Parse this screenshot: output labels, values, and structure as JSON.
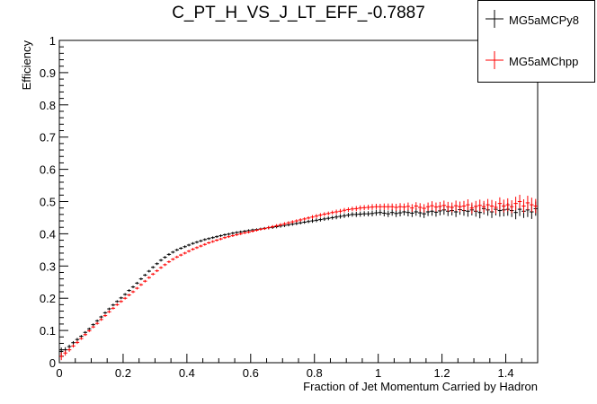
{
  "chart_data": {
    "type": "scatter",
    "title": "C_PT_H_VS_J_LT_EFF_-0.7887",
    "xlabel": "Fraction of Jet Momentum Carried by Hadron",
    "ylabel": "Efficiency",
    "xlim": [
      0,
      1.5
    ],
    "ylim": [
      0,
      1
    ],
    "x_ticks": [
      0,
      0.2,
      0.4,
      0.6,
      0.8,
      1,
      1.2,
      1.4
    ],
    "x_tick_labels": [
      "0",
      "0.2",
      "0.4",
      "0.6",
      "0.8",
      "1",
      "1.2",
      "1.4"
    ],
    "y_ticks": [
      0,
      0.1,
      0.2,
      0.3,
      0.4,
      0.5,
      0.6,
      0.7,
      0.8,
      0.9,
      1
    ],
    "y_tick_labels": [
      "0",
      "0.1",
      "0.2",
      "0.3",
      "0.4",
      "0.5",
      "0.6",
      "0.7",
      "0.8",
      "0.9",
      "1"
    ],
    "grid": false,
    "legend_position": "top-right",
    "bin_width": 0.0125,
    "series": [
      {
        "name": "MG5aMCPy8",
        "color": "#000000",
        "x": [
          0.00625,
          0.01875,
          0.03125,
          0.04375,
          0.05625,
          0.06875,
          0.08125,
          0.09375,
          0.10625,
          0.11875,
          0.13125,
          0.14375,
          0.15625,
          0.16875,
          0.18125,
          0.19375,
          0.20625,
          0.21875,
          0.23125,
          0.24375,
          0.25625,
          0.26875,
          0.28125,
          0.29375,
          0.30625,
          0.31875,
          0.33125,
          0.34375,
          0.35625,
          0.36875,
          0.38125,
          0.39375,
          0.40625,
          0.41875,
          0.43125,
          0.44375,
          0.45625,
          0.46875,
          0.48125,
          0.49375,
          0.50625,
          0.51875,
          0.53125,
          0.54375,
          0.55625,
          0.56875,
          0.58125,
          0.59375,
          0.60625,
          0.61875,
          0.63125,
          0.64375,
          0.65625,
          0.66875,
          0.68125,
          0.69375,
          0.70625,
          0.71875,
          0.73125,
          0.74375,
          0.75625,
          0.76875,
          0.78125,
          0.79375,
          0.80625,
          0.81875,
          0.83125,
          0.84375,
          0.85625,
          0.86875,
          0.88125,
          0.89375,
          0.90625,
          0.91875,
          0.93125,
          0.94375,
          0.95625,
          0.96875,
          0.98125,
          0.99375,
          1.00625,
          1.01875,
          1.03125,
          1.04375,
          1.05625,
          1.06875,
          1.08125,
          1.09375,
          1.10625,
          1.11875,
          1.13125,
          1.14375,
          1.15625,
          1.16875,
          1.18125,
          1.19375,
          1.20625,
          1.21875,
          1.23125,
          1.24375,
          1.25625,
          1.26875,
          1.28125,
          1.29375,
          1.30625,
          1.31875,
          1.33125,
          1.34375,
          1.35625,
          1.36875,
          1.38125,
          1.39375,
          1.40625,
          1.41875,
          1.43125,
          1.44375,
          1.45625,
          1.46875,
          1.48125,
          1.49375
        ],
        "y": [
          0.035,
          0.04,
          0.05,
          0.062,
          0.072,
          0.082,
          0.094,
          0.105,
          0.118,
          0.13,
          0.142,
          0.155,
          0.167,
          0.179,
          0.19,
          0.201,
          0.212,
          0.224,
          0.235,
          0.247,
          0.26,
          0.272,
          0.284,
          0.296,
          0.307,
          0.318,
          0.327,
          0.336,
          0.343,
          0.35,
          0.355,
          0.36,
          0.365,
          0.37,
          0.374,
          0.378,
          0.382,
          0.385,
          0.388,
          0.391,
          0.394,
          0.397,
          0.399,
          0.402,
          0.404,
          0.406,
          0.408,
          0.41,
          0.412,
          0.413,
          0.415,
          0.417,
          0.419,
          0.42,
          0.422,
          0.424,
          0.426,
          0.428,
          0.43,
          0.432,
          0.434,
          0.436,
          0.438,
          0.44,
          0.442,
          0.444,
          0.446,
          0.448,
          0.45,
          0.452,
          0.454,
          0.456,
          0.458,
          0.46,
          0.46,
          0.461,
          0.462,
          0.462,
          0.463,
          0.465,
          0.466,
          0.464,
          0.462,
          0.466,
          0.463,
          0.465,
          0.468,
          0.466,
          0.464,
          0.468,
          0.465,
          0.462,
          0.468,
          0.47,
          0.467,
          0.471,
          0.474,
          0.47,
          0.472,
          0.468,
          0.475,
          0.472,
          0.47,
          0.474,
          0.47,
          0.466,
          0.478,
          0.474,
          0.468,
          0.476,
          0.472,
          0.474,
          0.476,
          0.472,
          0.466,
          0.476,
          0.47,
          0.474,
          0.468,
          0.478
        ],
        "yerr": [
          0.012,
          0.008,
          0.006,
          0.005,
          0.005,
          0.004,
          0.004,
          0.004,
          0.004,
          0.004,
          0.004,
          0.004,
          0.004,
          0.004,
          0.004,
          0.004,
          0.004,
          0.004,
          0.004,
          0.004,
          0.004,
          0.004,
          0.004,
          0.004,
          0.004,
          0.004,
          0.004,
          0.004,
          0.004,
          0.004,
          0.004,
          0.004,
          0.004,
          0.004,
          0.004,
          0.004,
          0.004,
          0.004,
          0.004,
          0.004,
          0.004,
          0.004,
          0.004,
          0.004,
          0.004,
          0.004,
          0.004,
          0.004,
          0.004,
          0.004,
          0.004,
          0.004,
          0.005,
          0.005,
          0.005,
          0.005,
          0.005,
          0.005,
          0.005,
          0.005,
          0.005,
          0.005,
          0.005,
          0.006,
          0.006,
          0.006,
          0.006,
          0.006,
          0.006,
          0.007,
          0.007,
          0.007,
          0.007,
          0.007,
          0.008,
          0.008,
          0.008,
          0.008,
          0.009,
          0.009,
          0.009,
          0.01,
          0.01,
          0.01,
          0.011,
          0.011,
          0.011,
          0.012,
          0.012,
          0.012,
          0.013,
          0.013,
          0.013,
          0.014,
          0.014,
          0.014,
          0.015,
          0.015,
          0.015,
          0.016,
          0.016,
          0.016,
          0.017,
          0.017,
          0.017,
          0.018,
          0.018,
          0.018,
          0.019,
          0.019,
          0.019,
          0.02,
          0.02,
          0.02,
          0.021,
          0.021,
          0.021,
          0.022,
          0.022,
          0.022
        ]
      },
      {
        "name": "MG5aMChpp",
        "color": "#ff0000",
        "x": [
          0.00625,
          0.01875,
          0.03125,
          0.04375,
          0.05625,
          0.06875,
          0.08125,
          0.09375,
          0.10625,
          0.11875,
          0.13125,
          0.14375,
          0.15625,
          0.16875,
          0.18125,
          0.19375,
          0.20625,
          0.21875,
          0.23125,
          0.24375,
          0.25625,
          0.26875,
          0.28125,
          0.29375,
          0.30625,
          0.31875,
          0.33125,
          0.34375,
          0.35625,
          0.36875,
          0.38125,
          0.39375,
          0.40625,
          0.41875,
          0.43125,
          0.44375,
          0.45625,
          0.46875,
          0.48125,
          0.49375,
          0.50625,
          0.51875,
          0.53125,
          0.54375,
          0.55625,
          0.56875,
          0.58125,
          0.59375,
          0.60625,
          0.61875,
          0.63125,
          0.64375,
          0.65625,
          0.66875,
          0.68125,
          0.69375,
          0.70625,
          0.71875,
          0.73125,
          0.74375,
          0.75625,
          0.76875,
          0.78125,
          0.79375,
          0.80625,
          0.81875,
          0.83125,
          0.84375,
          0.85625,
          0.86875,
          0.88125,
          0.89375,
          0.90625,
          0.91875,
          0.93125,
          0.94375,
          0.95625,
          0.96875,
          0.98125,
          0.99375,
          1.00625,
          1.01875,
          1.03125,
          1.04375,
          1.05625,
          1.06875,
          1.08125,
          1.09375,
          1.10625,
          1.11875,
          1.13125,
          1.14375,
          1.15625,
          1.16875,
          1.18125,
          1.19375,
          1.20625,
          1.21875,
          1.23125,
          1.24375,
          1.25625,
          1.26875,
          1.28125,
          1.29375,
          1.30625,
          1.31875,
          1.33125,
          1.34375,
          1.35625,
          1.36875,
          1.38125,
          1.39375,
          1.40625,
          1.41875,
          1.43125,
          1.44375,
          1.45625,
          1.46875,
          1.48125,
          1.49375
        ],
        "y": [
          0.02,
          0.03,
          0.04,
          0.052,
          0.063,
          0.075,
          0.087,
          0.099,
          0.111,
          0.122,
          0.134,
          0.146,
          0.158,
          0.169,
          0.18,
          0.19,
          0.2,
          0.21,
          0.22,
          0.231,
          0.242,
          0.253,
          0.264,
          0.275,
          0.285,
          0.295,
          0.304,
          0.313,
          0.321,
          0.328,
          0.334,
          0.34,
          0.346,
          0.352,
          0.357,
          0.362,
          0.367,
          0.372,
          0.376,
          0.38,
          0.384,
          0.388,
          0.391,
          0.394,
          0.397,
          0.4,
          0.403,
          0.405,
          0.408,
          0.411,
          0.414,
          0.416,
          0.419,
          0.422,
          0.425,
          0.428,
          0.431,
          0.434,
          0.437,
          0.44,
          0.443,
          0.446,
          0.449,
          0.452,
          0.455,
          0.458,
          0.461,
          0.463,
          0.466,
          0.468,
          0.47,
          0.473,
          0.475,
          0.477,
          0.478,
          0.48,
          0.481,
          0.482,
          0.483,
          0.484,
          0.484,
          0.484,
          0.484,
          0.484,
          0.482,
          0.484,
          0.483,
          0.485,
          0.48,
          0.486,
          0.482,
          0.479,
          0.484,
          0.487,
          0.483,
          0.485,
          0.488,
          0.484,
          0.482,
          0.487,
          0.484,
          0.486,
          0.49,
          0.48,
          0.485,
          0.488,
          0.484,
          0.49,
          0.486,
          0.482,
          0.494,
          0.486,
          0.49,
          0.484,
          0.494,
          0.5,
          0.486,
          0.496,
          0.49,
          0.486
        ],
        "yerr": [
          0.012,
          0.008,
          0.006,
          0.005,
          0.005,
          0.004,
          0.004,
          0.004,
          0.004,
          0.004,
          0.004,
          0.004,
          0.004,
          0.004,
          0.004,
          0.004,
          0.004,
          0.004,
          0.004,
          0.004,
          0.004,
          0.004,
          0.004,
          0.004,
          0.004,
          0.004,
          0.004,
          0.004,
          0.004,
          0.004,
          0.004,
          0.004,
          0.004,
          0.004,
          0.004,
          0.004,
          0.004,
          0.004,
          0.004,
          0.004,
          0.004,
          0.004,
          0.004,
          0.004,
          0.004,
          0.004,
          0.004,
          0.004,
          0.004,
          0.004,
          0.004,
          0.004,
          0.005,
          0.005,
          0.005,
          0.005,
          0.005,
          0.005,
          0.005,
          0.005,
          0.005,
          0.005,
          0.005,
          0.006,
          0.006,
          0.006,
          0.006,
          0.006,
          0.006,
          0.007,
          0.007,
          0.007,
          0.007,
          0.007,
          0.008,
          0.008,
          0.008,
          0.008,
          0.009,
          0.009,
          0.009,
          0.01,
          0.01,
          0.01,
          0.011,
          0.011,
          0.011,
          0.012,
          0.012,
          0.012,
          0.013,
          0.013,
          0.013,
          0.014,
          0.014,
          0.014,
          0.015,
          0.015,
          0.015,
          0.016,
          0.016,
          0.016,
          0.017,
          0.017,
          0.017,
          0.018,
          0.018,
          0.018,
          0.019,
          0.019,
          0.019,
          0.02,
          0.02,
          0.02,
          0.021,
          0.021,
          0.021,
          0.022,
          0.022,
          0.022
        ]
      }
    ]
  }
}
